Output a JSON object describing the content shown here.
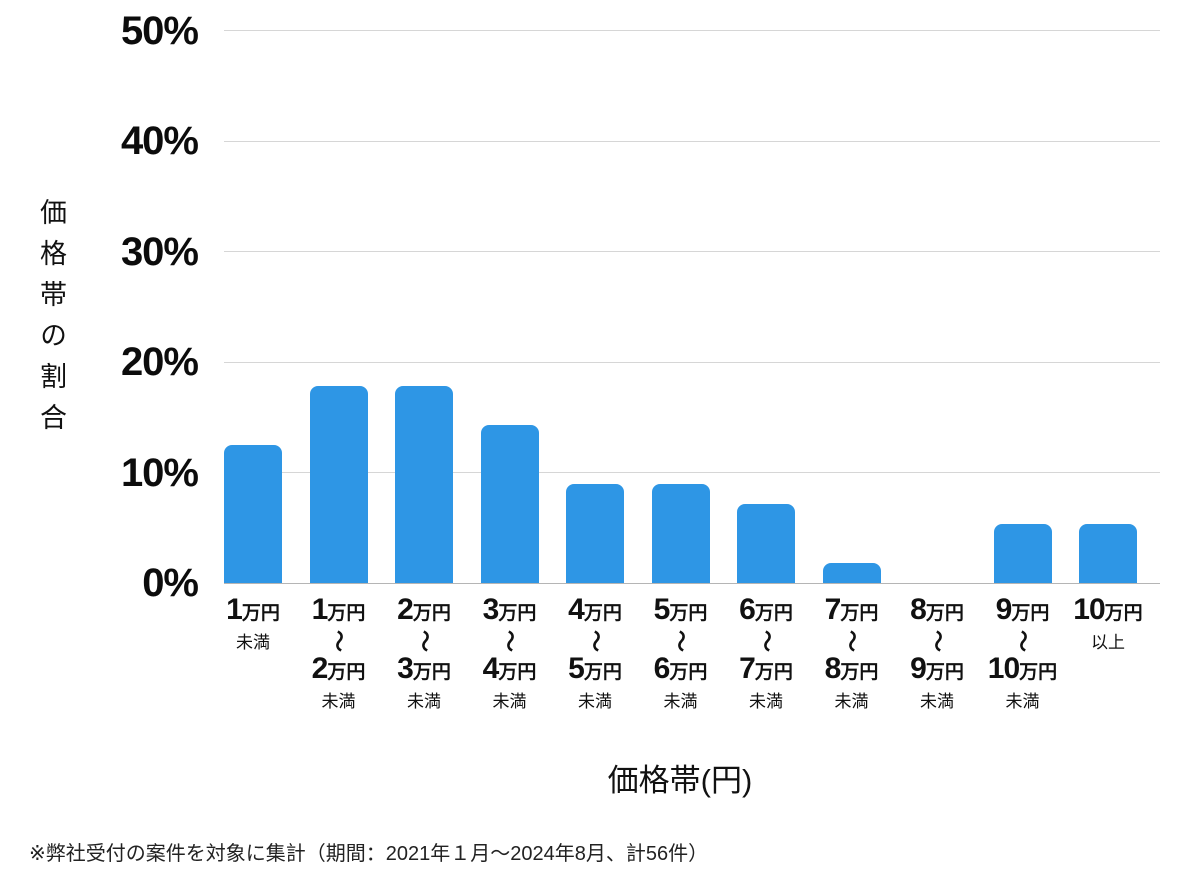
{
  "chart_data": {
    "type": "bar",
    "title": "",
    "xlabel": "価格帯(円)",
    "ylabel": "価格帯の割合",
    "ylim": [
      0,
      50
    ],
    "grid": true,
    "legend": "none",
    "bar_color": "#2e96e5",
    "gridline_color": "#d6d6d6",
    "y_ticks": [
      50,
      40,
      30,
      20,
      10,
      0
    ],
    "y_tick_labels": [
      "50%",
      "40%",
      "30%",
      "20%",
      "10%",
      "0%"
    ],
    "categories": [
      "1万円未満",
      "1万円〜2万円未満",
      "2万円〜3万円未満",
      "3万円〜4万円未満",
      "4万円〜5万円未満",
      "5万円〜6万円未満",
      "6万円〜7万円未満",
      "7万円〜8万円未満",
      "8万円〜9万円未満",
      "9万円〜10万円未満",
      "10万円以上"
    ],
    "values": [
      12.5,
      17.86,
      17.86,
      14.29,
      8.93,
      8.93,
      7.14,
      1.79,
      0,
      5.36,
      5.36
    ],
    "note": "※弊社受付の案件を対象に集計（期間：2021年１月～2024年8月、計56件）"
  },
  "x_labels": [
    {
      "big": "1",
      "unit": "万円",
      "tilde": "",
      "big2": "",
      "unit2": "",
      "note": "未満"
    },
    {
      "big": "1",
      "unit": "万円",
      "tilde": "〜",
      "big2": "2",
      "unit2": "万円",
      "note": "未満"
    },
    {
      "big": "2",
      "unit": "万円",
      "tilde": "〜",
      "big2": "3",
      "unit2": "万円",
      "note": "未満"
    },
    {
      "big": "3",
      "unit": "万円",
      "tilde": "〜",
      "big2": "4",
      "unit2": "万円",
      "note": "未満"
    },
    {
      "big": "4",
      "unit": "万円",
      "tilde": "〜",
      "big2": "5",
      "unit2": "万円",
      "note": "未満"
    },
    {
      "big": "5",
      "unit": "万円",
      "tilde": "〜",
      "big2": "6",
      "unit2": "万円",
      "note": "未満"
    },
    {
      "big": "6",
      "unit": "万円",
      "tilde": "〜",
      "big2": "7",
      "unit2": "万円",
      "note": "未満"
    },
    {
      "big": "7",
      "unit": "万円",
      "tilde": "〜",
      "big2": "8",
      "unit2": "万円",
      "note": "未満"
    },
    {
      "big": "8",
      "unit": "万円",
      "tilde": "〜",
      "big2": "9",
      "unit2": "万円",
      "note": "未満"
    },
    {
      "big": "9",
      "unit": "万円",
      "tilde": "〜",
      "big2": "10",
      "unit2": "万円",
      "note": "未満"
    },
    {
      "big": "10",
      "unit": "万円",
      "tilde": "",
      "big2": "",
      "unit2": "",
      "note": "以上"
    }
  ]
}
